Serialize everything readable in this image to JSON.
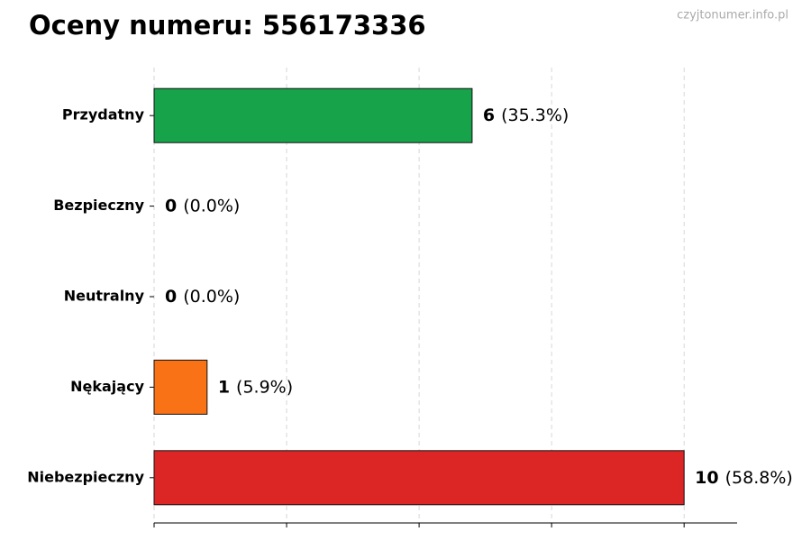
{
  "chart_data": {
    "type": "barh",
    "title": "Oceny numeru: 556173336",
    "watermark": "czyjtonumer.info.pl",
    "categories": [
      "Przydatny",
      "Bezpieczny",
      "Neutralny",
      "Nękający",
      "Niebezpieczny"
    ],
    "values": [
      6,
      0,
      0,
      1,
      10
    ],
    "percentages": [
      35.3,
      0.0,
      0.0,
      5.9,
      58.8
    ],
    "percentage_labels": [
      "(35.3%)",
      "(0.0%)",
      "(0.0%)",
      "(5.9%)",
      "(58.8%)"
    ],
    "colors": [
      "#16a34a",
      "#3b82f6",
      "#9ca3af",
      "#f97316",
      "#dc2626"
    ],
    "xlim": [
      0,
      11
    ],
    "xticks": [
      0,
      2.5,
      5,
      7.5,
      10
    ],
    "grid": true
  }
}
